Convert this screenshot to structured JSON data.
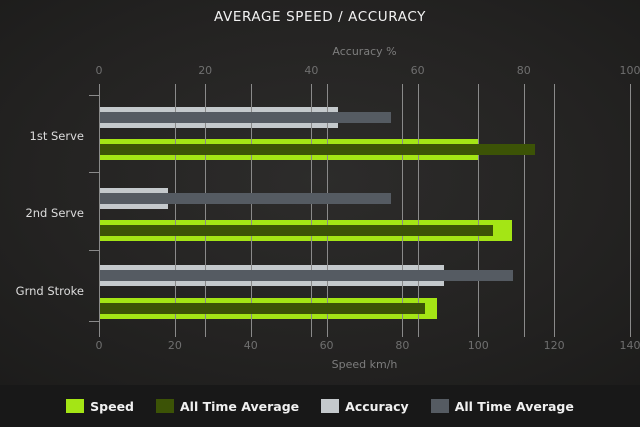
{
  "title": "AVERAGE SPEED / ACCURACY",
  "chart_data": {
    "type": "bar",
    "orientation": "horizontal",
    "grid": true,
    "legend_position": "bottom",
    "categories": [
      "1st Serve",
      "2nd Serve",
      "Grnd Stroke"
    ],
    "series": [
      {
        "key": "speed",
        "name": "Speed",
        "axis": "bottom",
        "color": "#a4e515",
        "values": [
          100,
          109,
          89
        ]
      },
      {
        "key": "speed-avg",
        "name": "All Time Average",
        "axis": "bottom",
        "color": "#3c5306",
        "values": [
          115,
          104,
          86
        ]
      },
      {
        "key": "accuracy",
        "name": "Accuracy",
        "axis": "top",
        "color": "#c4c9cc",
        "values": [
          45,
          13,
          65
        ]
      },
      {
        "key": "accuracy-avg",
        "name": "All Time Average",
        "axis": "top",
        "color": "#555b62",
        "values": [
          55,
          55,
          78
        ]
      }
    ],
    "axes": {
      "top": {
        "label": "Accuracy %",
        "min": 0,
        "max": 100,
        "ticks": [
          0,
          20,
          40,
          60,
          80,
          100
        ]
      },
      "bottom": {
        "label": "Speed km/h",
        "min": 0,
        "max": 140,
        "ticks": [
          0,
          20,
          40,
          60,
          80,
          100,
          120,
          140
        ]
      }
    },
    "legend": [
      {
        "label": "Speed",
        "color": "#a4e515"
      },
      {
        "label": "All Time Average",
        "color": "#3c5306"
      },
      {
        "label": "Accuracy",
        "color": "#c4c9cc"
      },
      {
        "label": "All Time Average",
        "color": "#555b62"
      }
    ],
    "colors": {
      "background_center": "#2d2c2b",
      "background_edge": "#171716",
      "gridline": "#8a8a8a",
      "title_text": "#f2f2f2",
      "tick_text": "#6f6f6f",
      "axis_title_text": "#7d7d7d",
      "category_text": "#dcdcdc",
      "legend_text": "#f0f0f0"
    }
  }
}
